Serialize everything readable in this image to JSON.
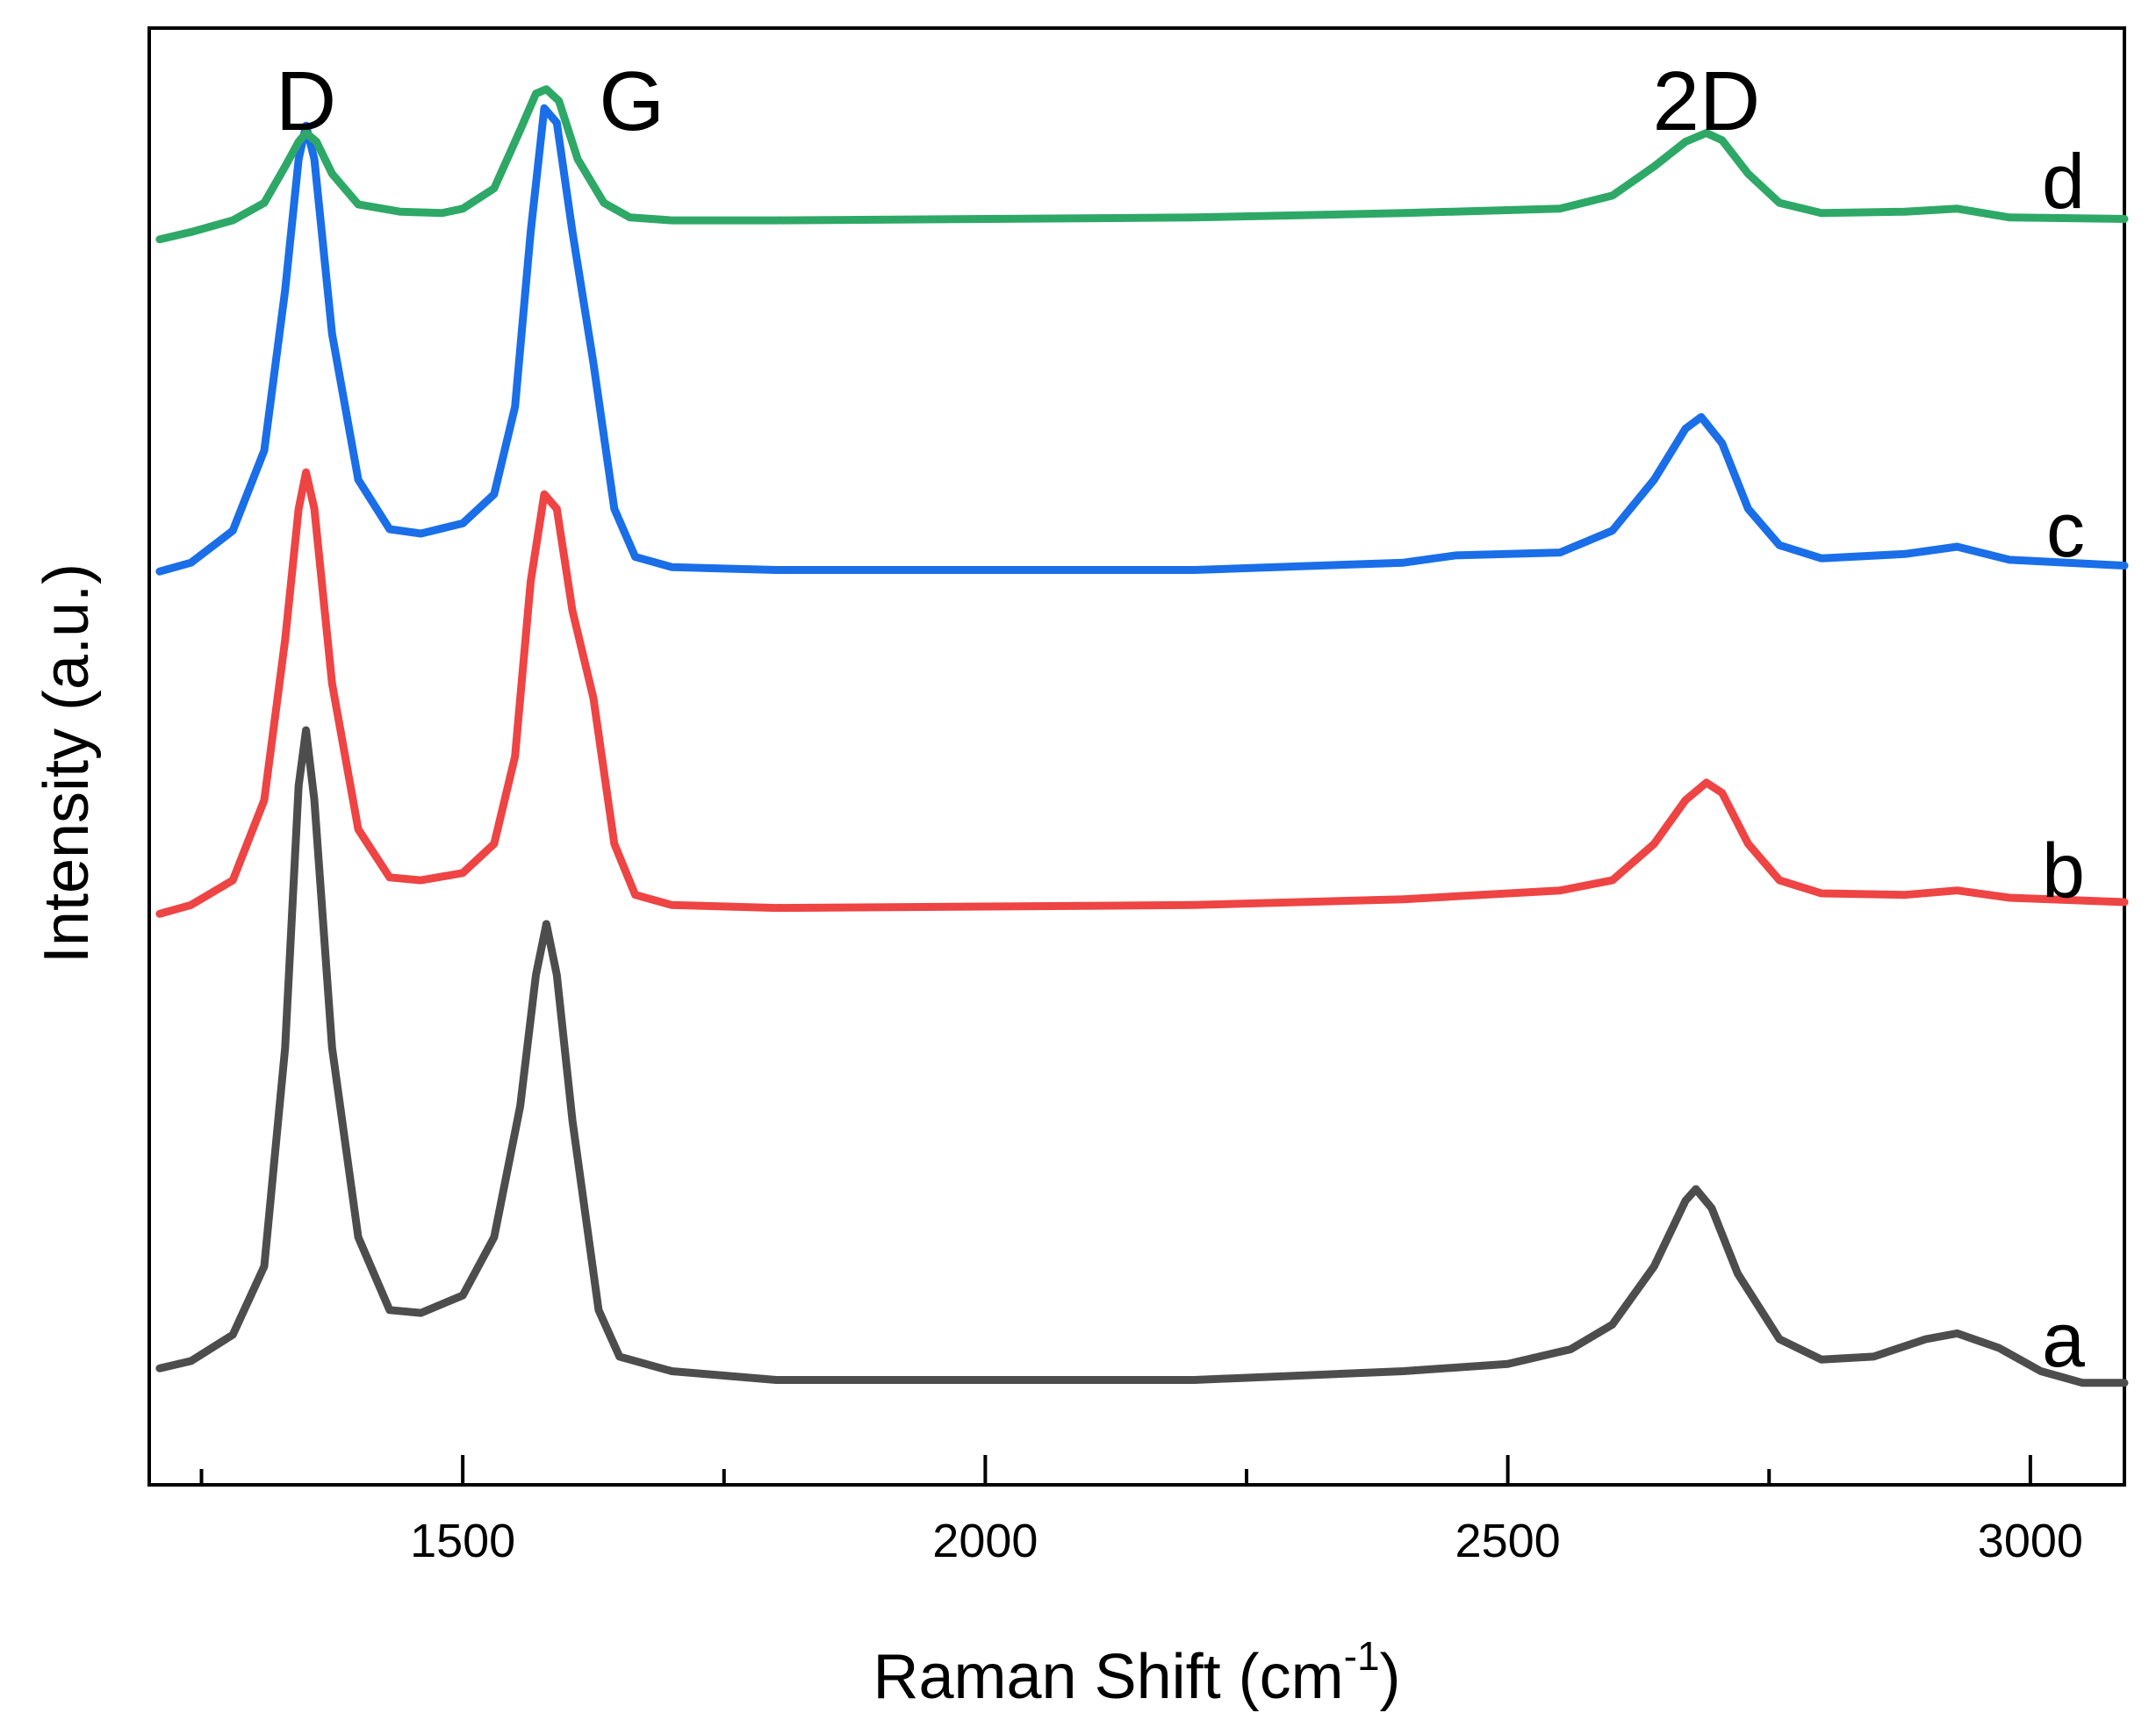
{
  "chart_data": {
    "type": "line",
    "title": "",
    "xlabel": "Raman Shift (cm",
    "xlabel_sup": "-1",
    "xlabel_suffix": ")",
    "ylabel": "Intensity (a.u.)",
    "xlim": [
      1200,
      3090
    ],
    "ylim": [
      0,
      100
    ],
    "x_ticks_major": [
      1500,
      2000,
      2500,
      3000
    ],
    "x_tick_labels": [
      "1500",
      "2000",
      "2500",
      "3000"
    ],
    "x_ticks_minor": [
      1250,
      1750,
      2250,
      2750
    ],
    "y_ticks_visible": false,
    "peak_annotations": [
      {
        "text": "D",
        "x": 1350
      },
      {
        "text": "G",
        "x": 1580
      },
      {
        "text": "2D",
        "x": 2690
      }
    ],
    "series": [
      {
        "name": "a",
        "color": "#4d4d4d",
        "baseline": 7.3,
        "points": [
          [
            1210,
            8.0
          ],
          [
            1240,
            8.5
          ],
          [
            1280,
            10.3
          ],
          [
            1310,
            15
          ],
          [
            1330,
            30
          ],
          [
            1343,
            48
          ],
          [
            1350,
            51.8
          ],
          [
            1358,
            47
          ],
          [
            1375,
            30
          ],
          [
            1400,
            17
          ],
          [
            1430,
            12
          ],
          [
            1460,
            11.8
          ],
          [
            1500,
            13
          ],
          [
            1530,
            17
          ],
          [
            1555,
            26
          ],
          [
            1570,
            35
          ],
          [
            1580,
            38.5
          ],
          [
            1590,
            35
          ],
          [
            1605,
            25
          ],
          [
            1630,
            12
          ],
          [
            1650,
            8.8
          ],
          [
            1700,
            7.8
          ],
          [
            1800,
            7.2
          ],
          [
            2000,
            7.2
          ],
          [
            2200,
            7.2
          ],
          [
            2400,
            7.8
          ],
          [
            2500,
            8.3
          ],
          [
            2560,
            9.3
          ],
          [
            2600,
            11
          ],
          [
            2640,
            15
          ],
          [
            2670,
            19.5
          ],
          [
            2680,
            20.3
          ],
          [
            2695,
            19
          ],
          [
            2720,
            14.5
          ],
          [
            2760,
            10
          ],
          [
            2800,
            8.6
          ],
          [
            2850,
            8.8
          ],
          [
            2900,
            10
          ],
          [
            2930,
            10.4
          ],
          [
            2970,
            9.4
          ],
          [
            3010,
            7.8
          ],
          [
            3050,
            7.0
          ],
          [
            3090,
            7.0
          ]
        ]
      },
      {
        "name": "b",
        "color": "#ee4444",
        "baseline": 39.5,
        "points": [
          [
            1210,
            39.2
          ],
          [
            1240,
            39.8
          ],
          [
            1280,
            41.5
          ],
          [
            1310,
            47
          ],
          [
            1330,
            58
          ],
          [
            1343,
            67
          ],
          [
            1350,
            69.5
          ],
          [
            1358,
            67
          ],
          [
            1375,
            55
          ],
          [
            1400,
            45
          ],
          [
            1430,
            41.7
          ],
          [
            1460,
            41.5
          ],
          [
            1500,
            42
          ],
          [
            1530,
            44
          ],
          [
            1550,
            50
          ],
          [
            1565,
            62
          ],
          [
            1578,
            68
          ],
          [
            1590,
            67
          ],
          [
            1605,
            60
          ],
          [
            1625,
            54
          ],
          [
            1645,
            44
          ],
          [
            1665,
            40.5
          ],
          [
            1700,
            39.8
          ],
          [
            1800,
            39.6
          ],
          [
            2000,
            39.7
          ],
          [
            2200,
            39.8
          ],
          [
            2400,
            40.2
          ],
          [
            2550,
            40.8
          ],
          [
            2600,
            41.5
          ],
          [
            2640,
            44
          ],
          [
            2670,
            47
          ],
          [
            2690,
            48.2
          ],
          [
            2705,
            47.5
          ],
          [
            2730,
            44
          ],
          [
            2760,
            41.5
          ],
          [
            2800,
            40.6
          ],
          [
            2880,
            40.5
          ],
          [
            2930,
            40.8
          ],
          [
            2980,
            40.3
          ],
          [
            3090,
            40.0
          ]
        ]
      },
      {
        "name": "c",
        "color": "#1a6ee8",
        "baseline": 62.9,
        "points": [
          [
            1210,
            62.7
          ],
          [
            1240,
            63.3
          ],
          [
            1280,
            65.5
          ],
          [
            1310,
            71
          ],
          [
            1330,
            82
          ],
          [
            1343,
            91
          ],
          [
            1350,
            93.3
          ],
          [
            1358,
            91
          ],
          [
            1375,
            79
          ],
          [
            1400,
            69
          ],
          [
            1430,
            65.6
          ],
          [
            1460,
            65.3
          ],
          [
            1500,
            66
          ],
          [
            1530,
            68
          ],
          [
            1550,
            74
          ],
          [
            1565,
            86
          ],
          [
            1578,
            94.5
          ],
          [
            1590,
            93.5
          ],
          [
            1605,
            86
          ],
          [
            1625,
            77
          ],
          [
            1645,
            67
          ],
          [
            1665,
            63.7
          ],
          [
            1700,
            63
          ],
          [
            1800,
            62.8
          ],
          [
            2000,
            62.8
          ],
          [
            2200,
            62.8
          ],
          [
            2400,
            63.3
          ],
          [
            2450,
            63.8
          ],
          [
            2550,
            64
          ],
          [
            2600,
            65.5
          ],
          [
            2640,
            69
          ],
          [
            2670,
            72.5
          ],
          [
            2685,
            73.3
          ],
          [
            2705,
            71.5
          ],
          [
            2730,
            67
          ],
          [
            2760,
            64.5
          ],
          [
            2800,
            63.6
          ],
          [
            2880,
            63.9
          ],
          [
            2930,
            64.4
          ],
          [
            2980,
            63.5
          ],
          [
            3090,
            63.1
          ]
        ]
      },
      {
        "name": "d",
        "color": "#2ea866",
        "baseline": 86.8,
        "points": [
          [
            1210,
            85.5
          ],
          [
            1240,
            86
          ],
          [
            1280,
            86.8
          ],
          [
            1310,
            88
          ],
          [
            1330,
            90.5
          ],
          [
            1343,
            92.2
          ],
          [
            1350,
            92.8
          ],
          [
            1360,
            92.2
          ],
          [
            1375,
            90
          ],
          [
            1400,
            87.9
          ],
          [
            1440,
            87.4
          ],
          [
            1480,
            87.3
          ],
          [
            1500,
            87.6
          ],
          [
            1530,
            89
          ],
          [
            1555,
            93
          ],
          [
            1570,
            95.5
          ],
          [
            1580,
            95.8
          ],
          [
            1592,
            95
          ],
          [
            1610,
            91
          ],
          [
            1635,
            88
          ],
          [
            1660,
            87
          ],
          [
            1700,
            86.8
          ],
          [
            1800,
            86.8
          ],
          [
            2000,
            86.9
          ],
          [
            2200,
            87.0
          ],
          [
            2400,
            87.3
          ],
          [
            2550,
            87.6
          ],
          [
            2600,
            88.5
          ],
          [
            2640,
            90.5
          ],
          [
            2670,
            92.2
          ],
          [
            2690,
            92.8
          ],
          [
            2705,
            92.3
          ],
          [
            2730,
            90
          ],
          [
            2760,
            88
          ],
          [
            2800,
            87.3
          ],
          [
            2880,
            87.4
          ],
          [
            2930,
            87.6
          ],
          [
            2980,
            87.0
          ],
          [
            3090,
            86.9
          ]
        ]
      }
    ],
    "series_labels": [
      {
        "text": "a",
        "series": "a"
      },
      {
        "text": "b",
        "series": "b"
      },
      {
        "text": "c",
        "series": "c"
      },
      {
        "text": "d",
        "series": "d"
      }
    ]
  }
}
